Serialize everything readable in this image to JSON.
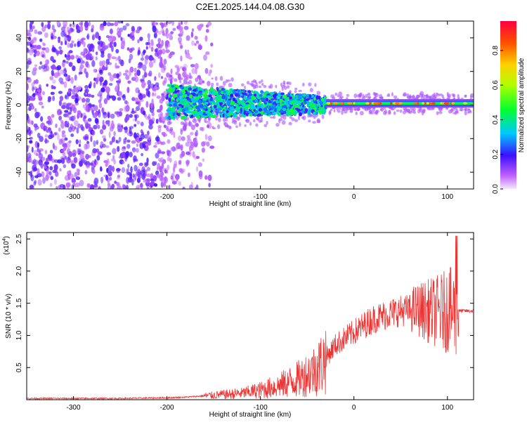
{
  "title": "C2E1.2025.144.04.08.G30",
  "colors": {
    "line": "#ee3333",
    "colormap": [
      "#c060ff",
      "#3a10ff",
      "#00c8ff",
      "#00ff30",
      "#b0ff00",
      "#ffd000",
      "#ff5000",
      "#ff0040"
    ]
  },
  "chart_data": [
    {
      "type": "heatmap",
      "title": "",
      "xlabel": "Height of straight line (km)",
      "ylabel": "Frequency (Hz)",
      "xlim": [
        -350,
        128
      ],
      "ylim": [
        -50,
        50
      ],
      "xticks": [
        -300,
        -200,
        -100,
        0,
        100
      ],
      "yticks": [
        -40,
        -20,
        0,
        20,
        40
      ],
      "colorbar": {
        "label": "Normalized spectral amplitude",
        "range": [
          0,
          0.97
        ],
        "ticks": [
          0.0,
          0.2,
          0.4,
          0.6,
          0.8
        ]
      },
      "regions": [
        {
          "x": [
            -350,
            -200
          ],
          "freq_spread": 50,
          "amplitude": 0.12,
          "description": "broadband noise"
        },
        {
          "x": [
            -200,
            -30
          ],
          "freq_spread": 10,
          "amplitude": 0.4,
          "description": "signal emerges near 0 Hz, narrowing"
        },
        {
          "x": [
            -30,
            128
          ],
          "freq_spread": 3,
          "amplitude": 0.9,
          "description": "narrow strong line near 1 Hz"
        }
      ]
    },
    {
      "type": "line",
      "title": "",
      "xlabel": "Height of straight line (km)",
      "ylabel": "SNR (10 * v/v)",
      "y_multiplier_label": "(x10",
      "y_multiplier_exp": "4",
      "y_multiplier_close": ")",
      "xlim": [
        -350,
        128
      ],
      "ylim": [
        0,
        2.6
      ],
      "xticks": [
        -300,
        -200,
        -100,
        0,
        100
      ],
      "yticks": [
        0.5,
        1.0,
        1.5,
        2.0,
        2.5
      ],
      "series": [
        {
          "x": [
            -350,
            -300,
            -250,
            -200,
            -180,
            -160,
            -140,
            -120,
            -100,
            -80,
            -60,
            -40,
            -30,
            -20,
            -10,
            0,
            10,
            20,
            30,
            40,
            50,
            60,
            70,
            80,
            90,
            100,
            110,
            120,
            128
          ],
          "y": [
            0.02,
            0.02,
            0.02,
            0.03,
            0.04,
            0.06,
            0.08,
            0.1,
            0.15,
            0.22,
            0.32,
            0.48,
            0.65,
            0.85,
            0.95,
            1.05,
            1.15,
            1.25,
            1.3,
            1.35,
            1.38,
            1.4,
            1.4,
            1.38,
            1.37,
            1.38,
            1.38,
            1.38,
            1.38
          ]
        }
      ]
    }
  ]
}
